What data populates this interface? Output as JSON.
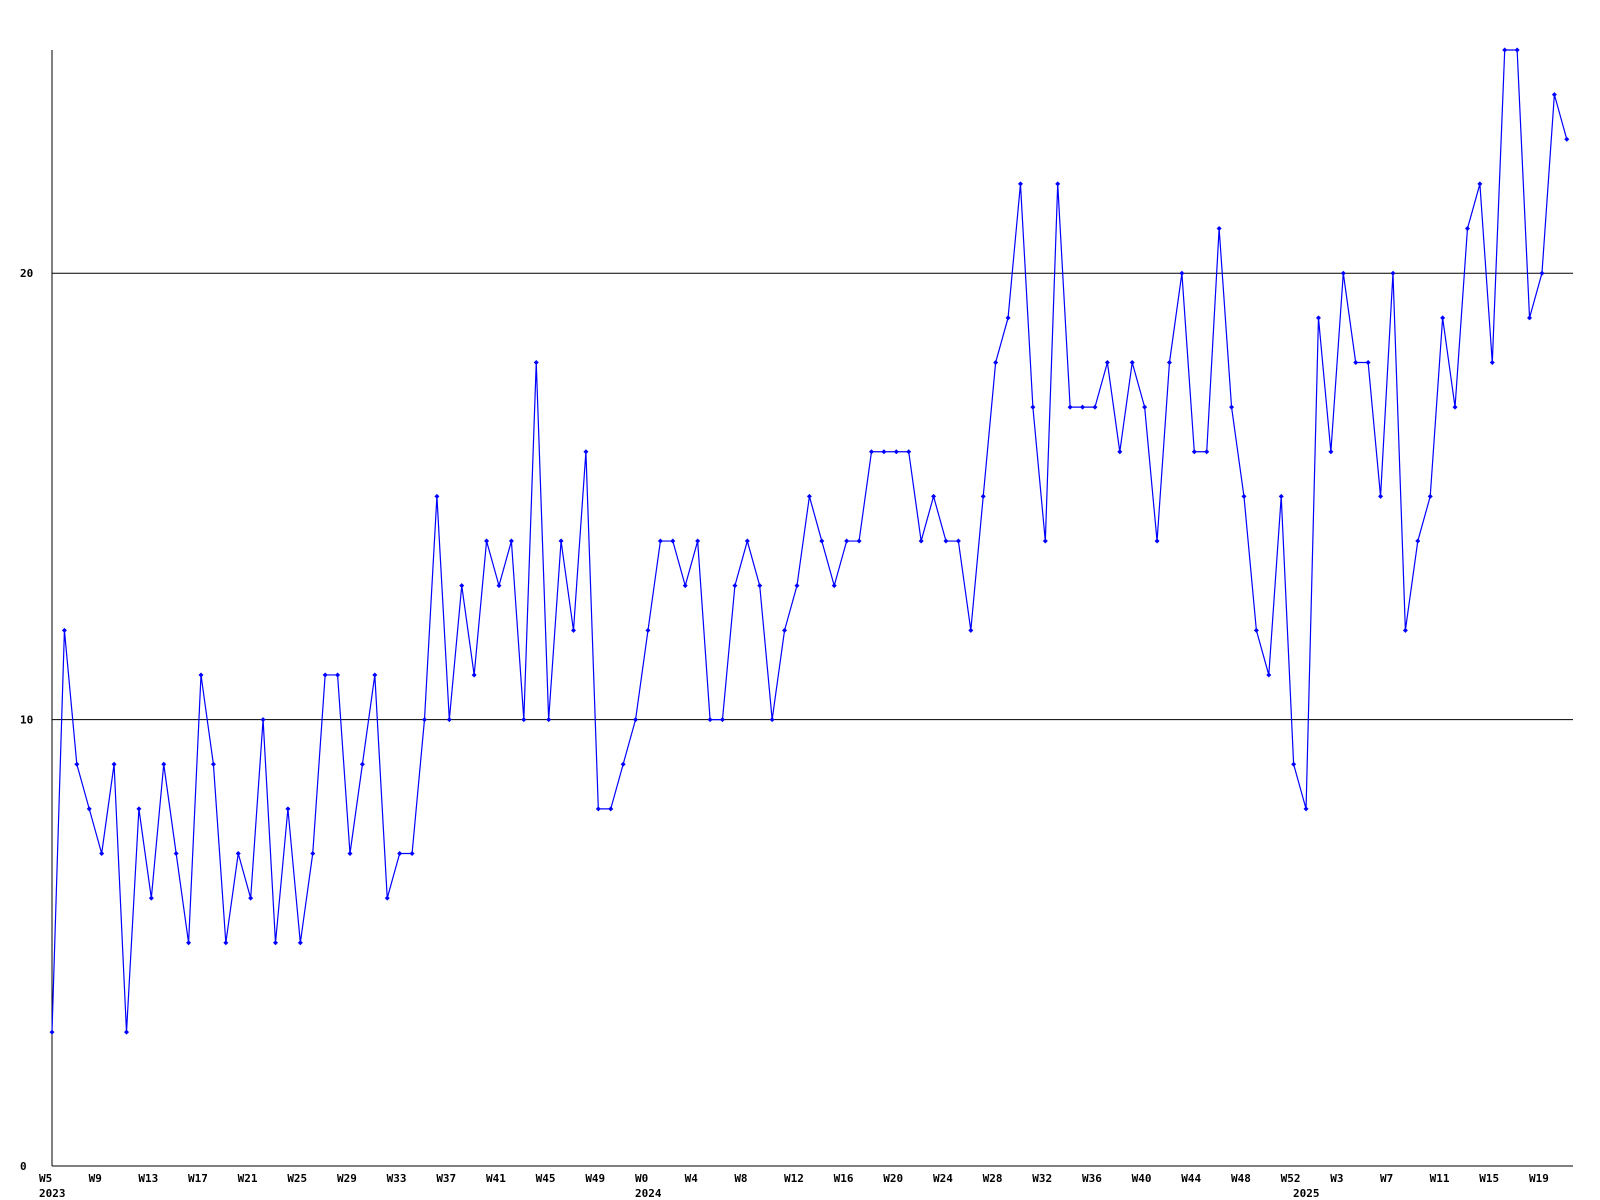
{
  "chart_data": {
    "type": "line",
    "categories": [
      "W5",
      null,
      null,
      null,
      "W9",
      null,
      null,
      null,
      "W13",
      null,
      null,
      null,
      "W17",
      null,
      null,
      null,
      "W21",
      null,
      null,
      null,
      "W25",
      null,
      null,
      null,
      "W29",
      null,
      null,
      null,
      "W33",
      null,
      null,
      null,
      "W37",
      null,
      null,
      null,
      "W41",
      null,
      null,
      null,
      "W45",
      null,
      null,
      null,
      "W49",
      null,
      null,
      null,
      "W0",
      null,
      null,
      null,
      "W4",
      null,
      null,
      null,
      "W8",
      null,
      null,
      null,
      "W12",
      null,
      null,
      null,
      "W16",
      null,
      null,
      null,
      "W20",
      null,
      null,
      null,
      "W24",
      null,
      null,
      null,
      "W28",
      null,
      null,
      null,
      "W32",
      null,
      null,
      null,
      "W36",
      null,
      null,
      null,
      "W40",
      null,
      null,
      null,
      "W44",
      null,
      null,
      null,
      "W48",
      null,
      null,
      null,
      "W52",
      null,
      null,
      null,
      "W3",
      null,
      null,
      null,
      "W7",
      null,
      null,
      null,
      "W11",
      null,
      null,
      null,
      "W15",
      null,
      null,
      null,
      "W19",
      null,
      null
    ],
    "year_labels": [
      {
        "index": 0,
        "label": "2023"
      },
      {
        "index": 48,
        "label": "2024"
      },
      {
        "index": 101,
        "label": "2025"
      }
    ],
    "series": [
      {
        "color": "#0000ff",
        "values": [
          3,
          12,
          9,
          8,
          7,
          9,
          3,
          8,
          6,
          9,
          7,
          5,
          11,
          9,
          5,
          7,
          6,
          10,
          5,
          8,
          5,
          7,
          11,
          11,
          7,
          9,
          11,
          6,
          7,
          7,
          10,
          15,
          10,
          13,
          11,
          14,
          13,
          14,
          10,
          18,
          10,
          14,
          12,
          16,
          8,
          8,
          9,
          10,
          12,
          14,
          14,
          13,
          14,
          10,
          10,
          13,
          14,
          13,
          10,
          12,
          13,
          15,
          14,
          13,
          14,
          14,
          16,
          16,
          16,
          16,
          14,
          15,
          14,
          14,
          12,
          15,
          18,
          19,
          22,
          17,
          14,
          22,
          17,
          17,
          17,
          18,
          16,
          18,
          17,
          14,
          18,
          20,
          16,
          16,
          21,
          17,
          15,
          12,
          11,
          15,
          9,
          8,
          19,
          16,
          20,
          18,
          18,
          15,
          20,
          12,
          14,
          15,
          19,
          17,
          21,
          22,
          18,
          25,
          25,
          19,
          20,
          24,
          23
        ]
      }
    ],
    "ylim": [
      0,
      25
    ],
    "yticks": [
      0,
      10,
      20
    ],
    "grid": true
  }
}
